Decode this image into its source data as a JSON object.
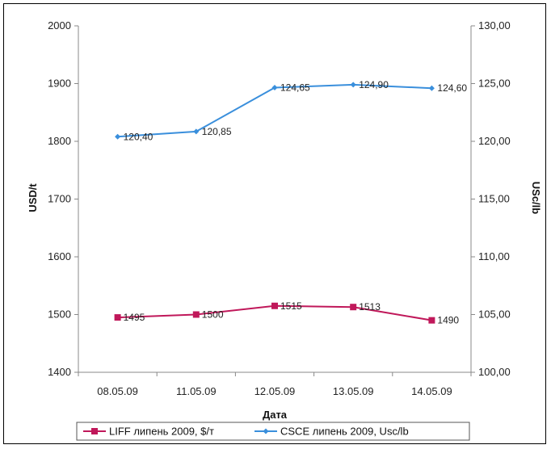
{
  "chart_data": {
    "type": "line",
    "categories": [
      "08.05.09",
      "11.05.09",
      "12.05.09",
      "13.05.09",
      "14.05.09"
    ],
    "xlabel": "Дата",
    "ylabel_left": "USD/t",
    "ylabel_right": "USc/lb",
    "ylim_left": [
      1400,
      2000
    ],
    "ylim_right": [
      100,
      130
    ],
    "yticks_left": [
      "1400",
      "1500",
      "1600",
      "1700",
      "1800",
      "1900",
      "2000"
    ],
    "yticks_right": [
      "100,00",
      "105,00",
      "110,00",
      "115,00",
      "120,00",
      "125,00",
      "130,00"
    ],
    "grid": false,
    "legend_position": "bottom",
    "series": [
      {
        "name": "LIFF липень 2009, $/т",
        "axis": "left",
        "color": "#c0185a",
        "marker": "square",
        "values": [
          1495,
          1500,
          1515,
          1513,
          1490
        ],
        "labels": [
          "1495",
          "1500",
          "1515",
          "1513",
          "1490"
        ]
      },
      {
        "name": "CSCE липень 2009, Usc/lb",
        "axis": "right",
        "color": "#3a8fdc",
        "marker": "diamond",
        "values": [
          120.4,
          120.85,
          124.65,
          124.9,
          124.6
        ],
        "labels": [
          "120,40",
          "120,85",
          "124,65",
          "124,90",
          "124,60"
        ]
      }
    ]
  }
}
